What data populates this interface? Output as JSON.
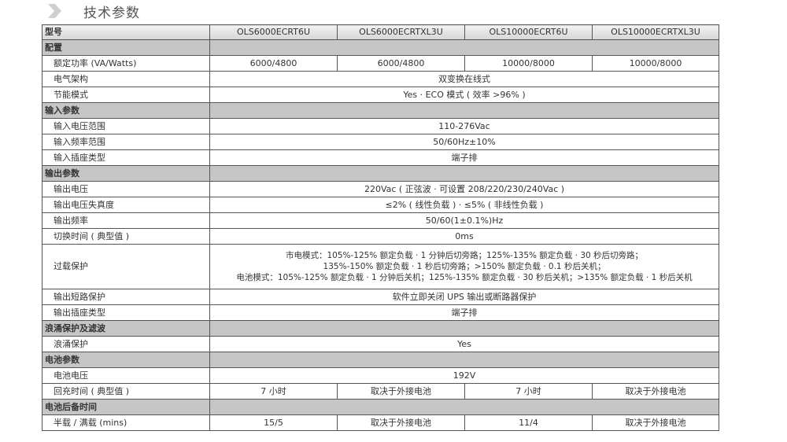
{
  "title": "技术参数",
  "icons": {
    "title": "chevron-right-icon"
  },
  "header": {
    "label": "型号",
    "models": [
      "OLS6000ECRT6U",
      "OLS6000ECRTXL3U",
      "OLS10000ECRT6U",
      "OLS10000ECRTXL3U"
    ]
  },
  "rows": [
    {
      "type": "section",
      "label": "配置"
    },
    {
      "type": "row",
      "label": "额定功率 (VA/Watts)",
      "values": [
        "6000/4800",
        "6000/4800",
        "10000/8000",
        "10000/8000"
      ]
    },
    {
      "type": "row",
      "label": "电气架构",
      "value": "双变换在线式"
    },
    {
      "type": "row",
      "label": "节能模式",
      "value": "Yes · ECO 模式 ( 效率 >96% )"
    },
    {
      "type": "section",
      "label": "输入参数"
    },
    {
      "type": "row",
      "label": "输入电压范围",
      "value": "110-276Vac"
    },
    {
      "type": "row",
      "label": "输入频率范围",
      "value": "50/60Hz±10%"
    },
    {
      "type": "row",
      "label": "输入插座类型",
      "value": "端子排"
    },
    {
      "type": "section",
      "label": "输出参数"
    },
    {
      "type": "row",
      "label": "输出电压",
      "value": "220Vac ( 正弦波 · 可设置 208/220/230/240Vac )"
    },
    {
      "type": "row",
      "label": "输出电压失真度",
      "value": "≤2% ( 线性负载 ) · ≤5% ( 非线性负载 )"
    },
    {
      "type": "row",
      "label": "输出频率",
      "value": "50/60(1±0.1%)Hz"
    },
    {
      "type": "row",
      "label": "切换时间 ( 典型值 )",
      "value": "0ms"
    },
    {
      "type": "multi",
      "label": "过载保护",
      "lines": [
        "市电模式：105%-125% 额定负载 · 1 分钟后切旁路；125%-135% 额定负载 · 30 秒后切旁路；",
        "135%-150% 额定负载 · 1 秒后切旁路；>150% 额定负载 · 0.1 秒后关机；",
        "电池模式：105%-125% 额定负载 · 1 分钟后关机；125%-135% 额定负载 · 30 秒后关机；>135% 额定负载 · 1 秒后关机"
      ]
    },
    {
      "type": "row",
      "label": "输出短路保护",
      "value": "软件立即关闭 UPS 输出或断路器保护"
    },
    {
      "type": "row",
      "label": "输出插座类型",
      "value": "端子排"
    },
    {
      "type": "section",
      "label": "浪涌保护及滤波"
    },
    {
      "type": "row",
      "label": "浪涌保护",
      "value": "Yes"
    },
    {
      "type": "section",
      "label": "电池参数"
    },
    {
      "type": "row",
      "label": "电池电压",
      "value": "192V"
    },
    {
      "type": "row",
      "label": "回充时间 ( 典型值 )",
      "values": [
        "7 小时",
        "取决于外接电池",
        "7 小时",
        "取决于外接电池"
      ]
    },
    {
      "type": "section",
      "label": "电池后备时间"
    },
    {
      "type": "row",
      "label": "半载 / 满载 (mins)",
      "values": [
        "15/5",
        "取决于外接电池",
        "11/4",
        "取决于外接电池"
      ]
    }
  ]
}
